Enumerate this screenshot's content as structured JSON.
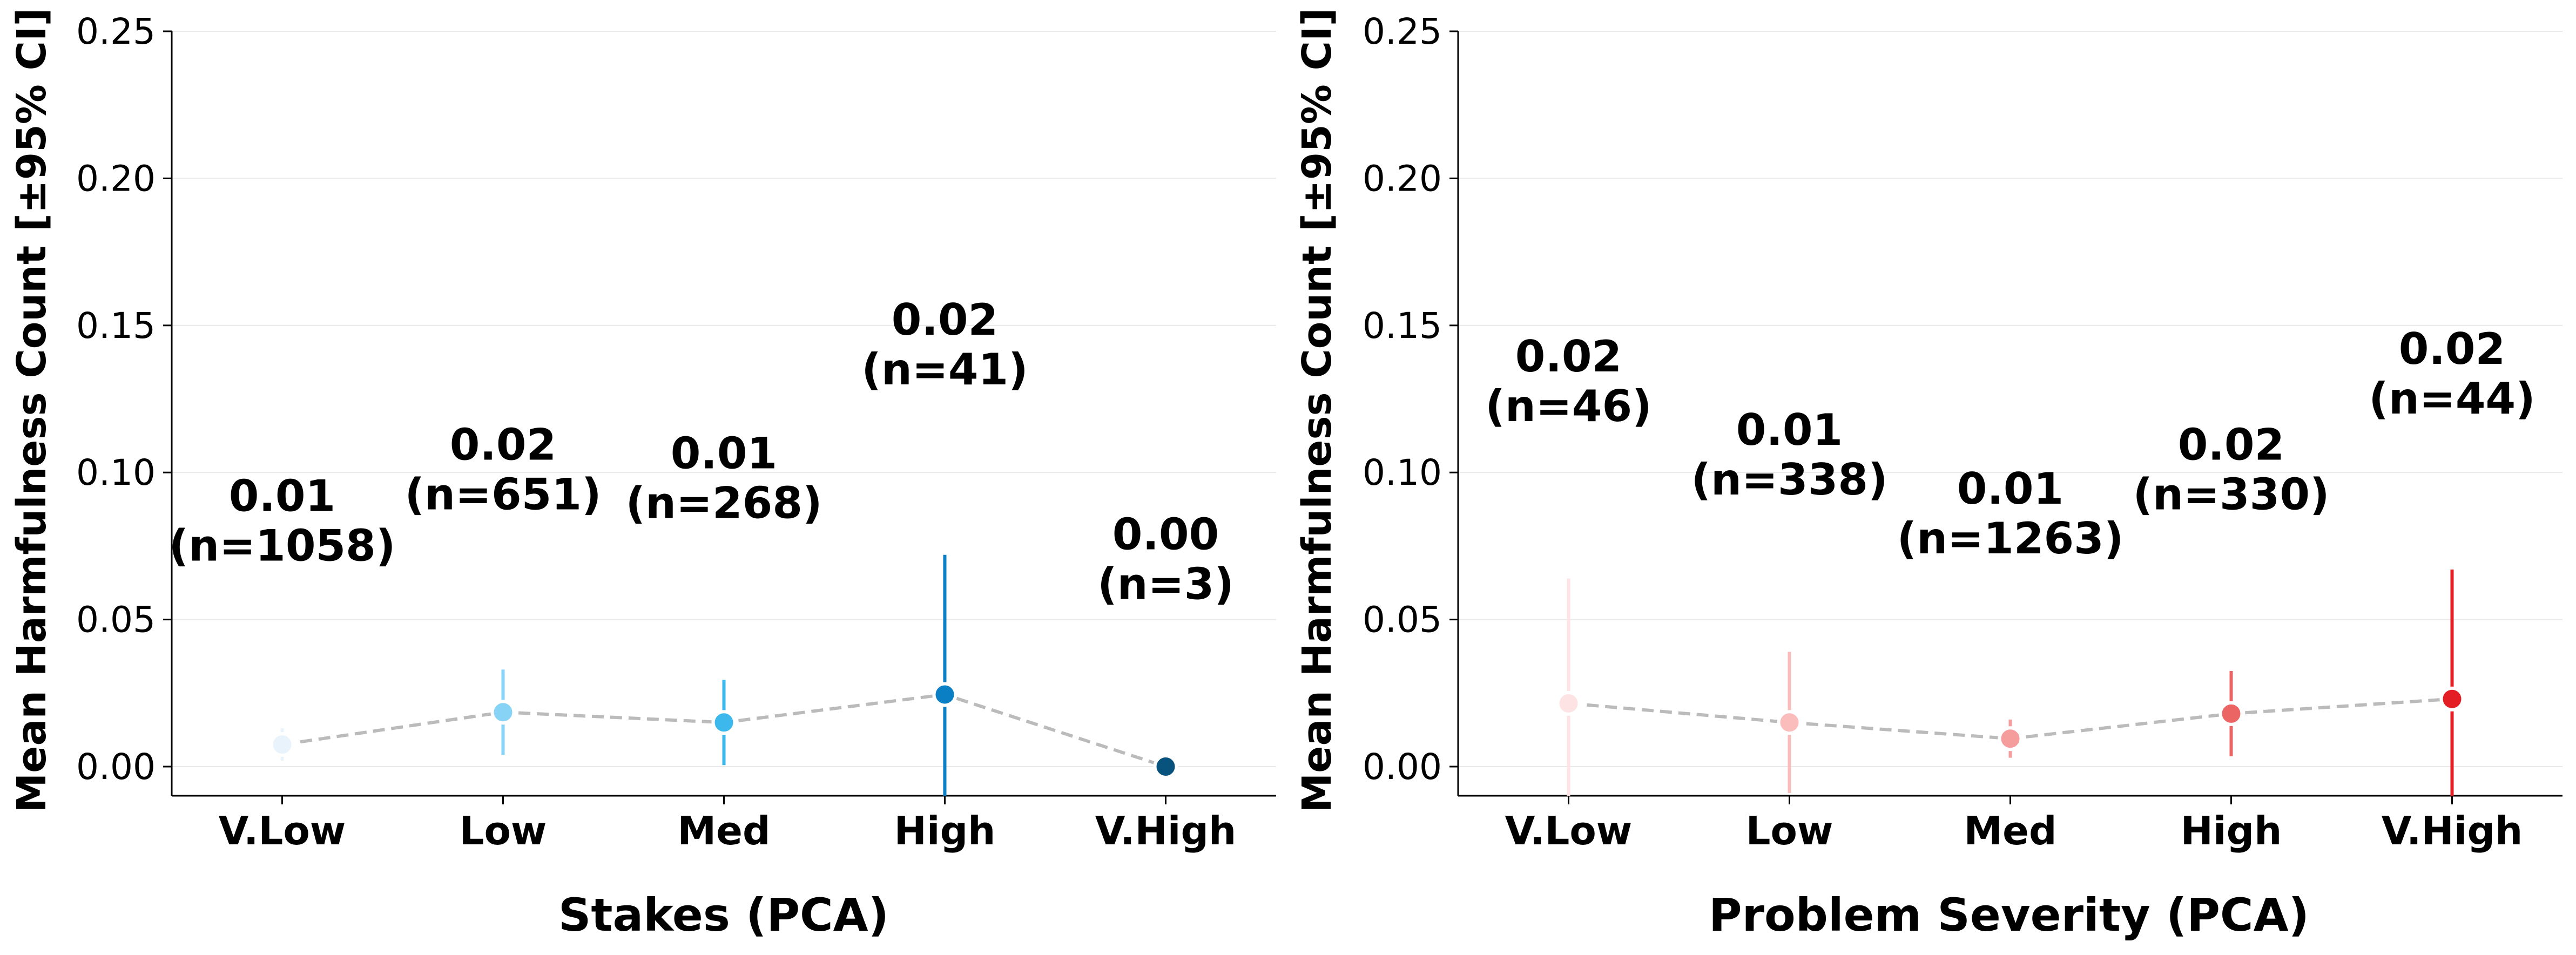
{
  "chart_data": [
    {
      "type": "line",
      "xlabel": "Stakes (PCA)",
      "ylabel": "Mean Harmfulness Count [±95% CI]",
      "ylim": [
        -0.01,
        0.25
      ],
      "yticks": [
        "0.00",
        "0.05",
        "0.10",
        "0.15",
        "0.20",
        "0.25"
      ],
      "ytick_values": [
        0,
        0.05,
        0.1,
        0.15,
        0.2,
        0.25
      ],
      "categories": [
        "V.Low",
        "Low",
        "Med",
        "High",
        "V.High"
      ],
      "values": [
        0.0075,
        0.0185,
        0.015,
        0.0245,
        0.0
      ],
      "ci_low": [
        0.002,
        0.004,
        0.0005,
        -0.023,
        0.0
      ],
      "ci_high": [
        0.013,
        0.033,
        0.0295,
        0.072,
        0.0
      ],
      "value_labels": [
        "0.01",
        "0.02",
        "0.01",
        "0.02",
        "0.00"
      ],
      "n_labels": [
        "(n=1058)",
        "(n=651)",
        "(n=268)",
        "(n=41)",
        "(n=3)"
      ],
      "label_y": [
        0.07,
        0.0875,
        0.0845,
        0.13,
        0.057
      ],
      "colors": [
        "#e8f3fb",
        "#87d3f5",
        "#3cb8ec",
        "#0a7fc3",
        "#08527e"
      ],
      "line_color": "#bbbbbb"
    },
    {
      "type": "line",
      "xlabel": "Problem Severity (PCA)",
      "ylabel": "Mean Harmfulness Count [±95% CI]",
      "ylim": [
        -0.01,
        0.25
      ],
      "yticks": [
        "0.00",
        "0.05",
        "0.10",
        "0.15",
        "0.20",
        "0.25"
      ],
      "ytick_values": [
        0,
        0.05,
        0.1,
        0.15,
        0.2,
        0.25
      ],
      "categories": [
        "V.Low",
        "Low",
        "Med",
        "High",
        "V.High"
      ],
      "values": [
        0.0215,
        0.015,
        0.0095,
        0.018,
        0.023
      ],
      "ci_low": [
        -0.021,
        -0.009,
        0.003,
        0.0035,
        -0.021
      ],
      "ci_high": [
        0.064,
        0.039,
        0.016,
        0.0325,
        0.067
      ],
      "value_labels": [
        "0.02",
        "0.01",
        "0.01",
        "0.02",
        "0.02"
      ],
      "n_labels": [
        "(n=46)",
        "(n=338)",
        "(n=1263)",
        "(n=330)",
        "(n=44)"
      ],
      "label_y": [
        0.1175,
        0.0925,
        0.0725,
        0.0875,
        0.12
      ],
      "colors": [
        "#fde3e3",
        "#fbbcbc",
        "#f59c9c",
        "#ec6565",
        "#e31e24"
      ],
      "line_color": "#bbbbbb"
    }
  ]
}
